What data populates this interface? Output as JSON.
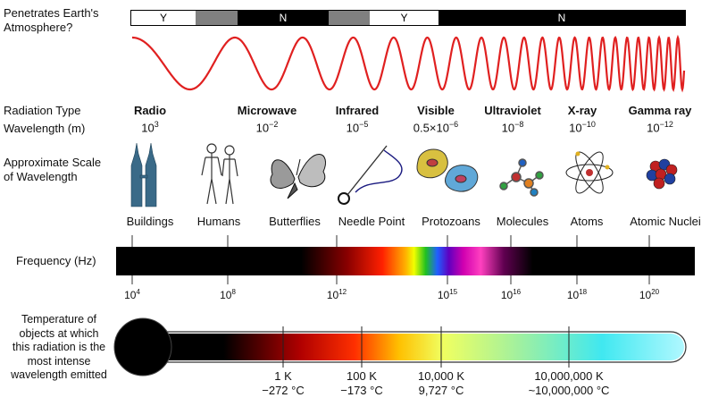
{
  "atmosphere": {
    "label": "Penetrates Earth's\nAtmosphere?",
    "segments": [
      {
        "text": "Y",
        "fill": "#ffffff"
      },
      {
        "text": "",
        "fill": "#808080"
      },
      {
        "text": "N",
        "fill": "#000000"
      },
      {
        "text": "",
        "fill": "#808080"
      },
      {
        "text": "Y",
        "fill": "#ffffff"
      },
      {
        "text": "N",
        "fill": "#000000"
      }
    ]
  },
  "row_labels": {
    "radiation_type": "Radiation Type",
    "wavelength": "Wavelength (m)",
    "scale": "Approximate Scale\nof Wavelength",
    "frequency": "Frequency (Hz)",
    "temperature": "Temperature of\nobjects at which\nthis radiation is the\nmost intense\nwavelength emitted"
  },
  "bands": [
    {
      "name": "Radio",
      "base": "10",
      "exp": "3"
    },
    {
      "name": "Microwave",
      "base": "10",
      "exp": "−2"
    },
    {
      "name": "Infrared",
      "base": "10",
      "exp": "−5"
    },
    {
      "name": "Visible",
      "base": "0.5×10",
      "exp": "−6"
    },
    {
      "name": "Ultraviolet",
      "base": "10",
      "exp": "−8"
    },
    {
      "name": "X-ray",
      "base": "10",
      "exp": "−10"
    },
    {
      "name": "Gamma ray",
      "base": "10",
      "exp": "−12"
    }
  ],
  "scales": [
    "Buildings",
    "Humans",
    "Butterflies",
    "Needle Point",
    "Protozoans",
    "Molecules",
    "Atoms",
    "Atomic Nuclei"
  ],
  "freq_ticks": [
    {
      "base": "10",
      "exp": "4"
    },
    {
      "base": "10",
      "exp": "8"
    },
    {
      "base": "10",
      "exp": "12"
    },
    {
      "base": "10",
      "exp": "15"
    },
    {
      "base": "10",
      "exp": "16"
    },
    {
      "base": "10",
      "exp": "18"
    },
    {
      "base": "10",
      "exp": "20"
    }
  ],
  "temps": [
    {
      "k": "1 K",
      "c": "−272 °C"
    },
    {
      "k": "100 K",
      "c": "−173 °C"
    },
    {
      "k": "10,000 K",
      "c": "9,727 °C"
    },
    {
      "k": "10,000,000 K",
      "c": "~10,000,000 °C"
    }
  ],
  "colors": {
    "wave": "#e02020",
    "bar": "#000000"
  }
}
